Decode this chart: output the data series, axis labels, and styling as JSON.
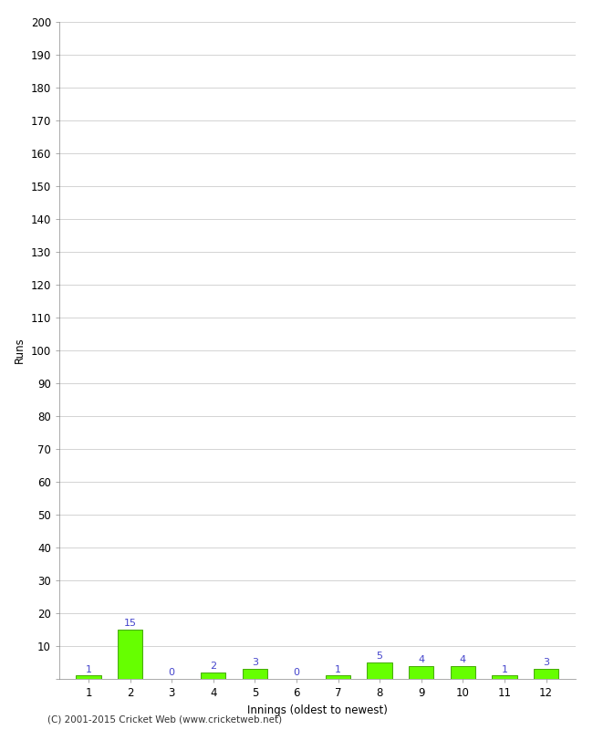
{
  "innings": [
    1,
    2,
    3,
    4,
    5,
    6,
    7,
    8,
    9,
    10,
    11,
    12
  ],
  "runs": [
    1,
    15,
    0,
    2,
    3,
    0,
    1,
    5,
    4,
    4,
    1,
    3
  ],
  "bar_color": "#66ff00",
  "bar_edge_color": "#44aa00",
  "label_color": "#4444cc",
  "xlabel": "Innings (oldest to newest)",
  "ylabel": "Runs",
  "ylim": [
    0,
    200
  ],
  "yticks": [
    0,
    10,
    20,
    30,
    40,
    50,
    60,
    70,
    80,
    90,
    100,
    110,
    120,
    130,
    140,
    150,
    160,
    170,
    180,
    190,
    200
  ],
  "footnote": "(C) 2001-2015 Cricket Web (www.cricketweb.net)",
  "background_color": "#ffffff",
  "grid_color": "#cccccc",
  "tick_fontsize": 8.5,
  "label_fontsize": 8.5,
  "annot_fontsize": 8
}
